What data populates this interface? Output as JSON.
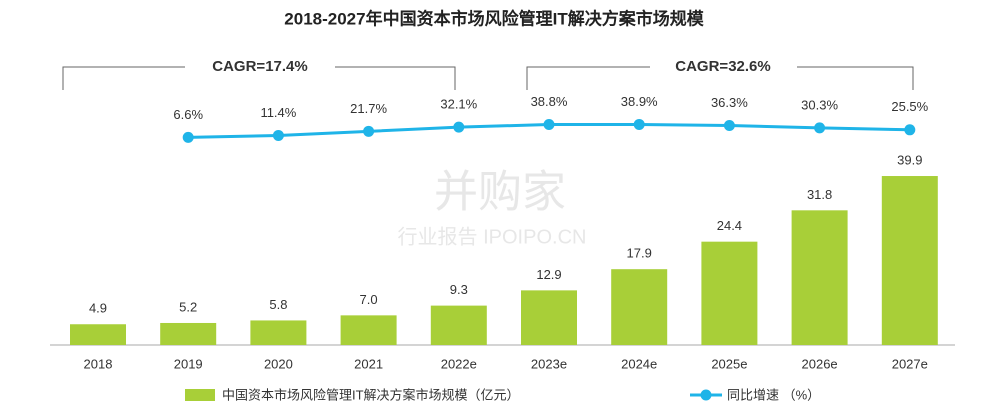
{
  "chart_data": {
    "type": "bar",
    "title": "2018-2027年中国资本市场风险管理IT解决方案市场规模",
    "categories": [
      "2018",
      "2019",
      "2020",
      "2021",
      "2022e",
      "2023e",
      "2024e",
      "2025e",
      "2026e",
      "2027e"
    ],
    "series": [
      {
        "name": "中国资本市场风险管理IT解决方案市场规模（亿元）",
        "type": "bar",
        "color": "#a8cf38",
        "values": [
          4.9,
          5.2,
          5.8,
          7.0,
          9.3,
          12.9,
          17.9,
          24.4,
          31.8,
          39.9
        ],
        "value_labels": [
          "4.9",
          "5.2",
          "5.8",
          "7.0",
          "9.3",
          "12.9",
          "17.9",
          "24.4",
          "31.8",
          "39.9"
        ]
      },
      {
        "name": "同比增速 （%）",
        "type": "line",
        "axis": "y2",
        "color": "#1fb4e8",
        "values": [
          null,
          6.6,
          11.4,
          21.7,
          32.1,
          38.8,
          38.9,
          36.3,
          30.3,
          25.5
        ],
        "value_labels": [
          null,
          "6.6%",
          "11.4%",
          "21.7%",
          "32.1%",
          "38.8%",
          "38.9%",
          "36.3%",
          "30.3%",
          "25.5%"
        ]
      }
    ],
    "ylim": [
      0,
      40
    ],
    "y2lim": [
      0,
      50
    ],
    "annotations": [
      "CAGR=17.4%",
      "CAGR=32.6%"
    ],
    "watermark": [
      "并购家",
      "行业报告 IPOIPO.CN"
    ]
  }
}
